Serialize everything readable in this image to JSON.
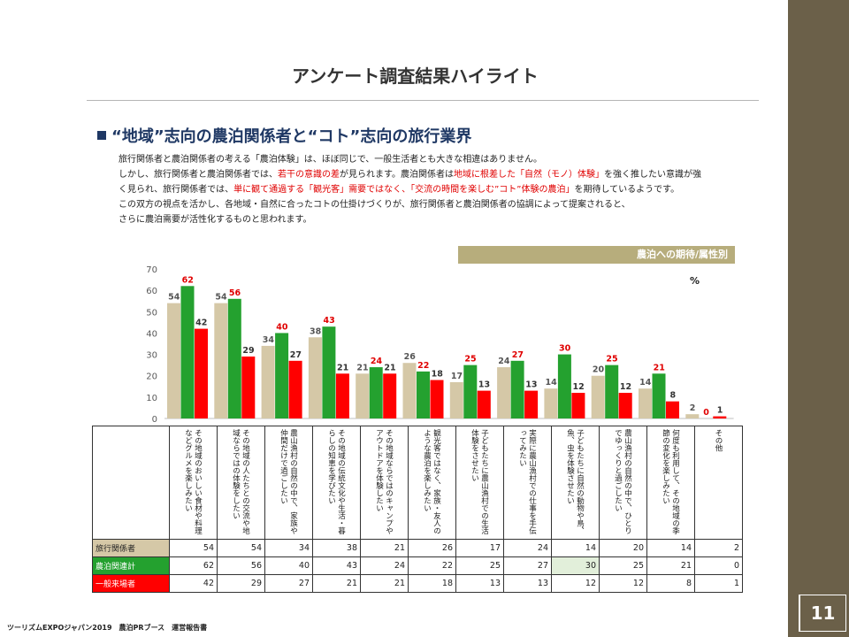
{
  "title": "アンケート調査結果ハイライト",
  "section_title": "“地域”志向の農泊関係者と“コト”志向の旅行業界",
  "body": {
    "p1": "旅行関係者と農泊関係者の考える「農泊体験」は、ほぼ同じで、一般生活者とも大きな相違はありません。",
    "p2_a": "しかし、旅行関係者と農泊関係者では、",
    "p2_red1": "若干の意識の差",
    "p2_b": "が見られます。農泊関係者は",
    "p2_red2": "地域に根差した「自然（モノ）体験」",
    "p2_c": "を強く推したい意識が強",
    "p3_a": "く見られ、旅行関係者では、",
    "p3_red1": "単に観て通過する「観光客」需要ではなく、「交流の時間を楽しむ”コト”体験の農泊」",
    "p3_b": "を期待しているようです。",
    "p4": "この双方の視点を活かし、各地域・自然に合ったコトの仕掛けづくりが、旅行関係者と農泊関係者の協調によって提案されると、",
    "p5": "さらに農泊需要が活性化するものと思われます。"
  },
  "chart_header": "農泊への期待/属性別",
  "unit": "%",
  "chart_data": {
    "type": "bar",
    "ylim": [
      0,
      70
    ],
    "yticks": [
      0,
      10,
      20,
      30,
      40,
      50,
      60,
      70
    ],
    "categories": [
      "その地域のおいしい食材や料理などグルメを楽しみたい",
      "その地域の人たちとの交流や地域ならではの体験をしたい",
      "農山漁村の自然の中で、家族や仲間だけで過ごしたい",
      "その地域の伝統文化や生活・暮らしの知恵を学びたい",
      "その地域ならではのキャンプやアウトドアを体験したい",
      "観光客ではなく、家族・友人のような農泊を楽しみたい",
      "子どもたちに農山漁村での生活体験をさせたい",
      "実際に農山漁村での仕事を手伝ってみたい",
      "子どもたちに自然の動物や鳥、魚、虫を体験させたい",
      "農山漁村の自然の中で、ひとりでゆっくりと過ごしたい",
      "何度も利用して、その地域の季節の変化を楽しみたい",
      "その他"
    ],
    "series": [
      {
        "name": "旅行関係者",
        "color": "#d5c8a7",
        "label_color": "#555555",
        "values": [
          54,
          54,
          34,
          38,
          21,
          26,
          17,
          24,
          14,
          20,
          14,
          2
        ]
      },
      {
        "name": "農泊関連計",
        "color": "#24a12f",
        "label_color": "#e00000",
        "values": [
          62,
          56,
          40,
          43,
          24,
          22,
          25,
          27,
          30,
          25,
          21,
          0
        ]
      },
      {
        "name": "一般来場者",
        "color": "#ff0000",
        "label_color": "#333333",
        "values": [
          42,
          29,
          27,
          21,
          21,
          18,
          13,
          13,
          12,
          12,
          8,
          1
        ]
      }
    ]
  },
  "footer": "ツーリズムEXPOジャパン2019　農泊PRブース　運営報告書",
  "page_number": "11"
}
